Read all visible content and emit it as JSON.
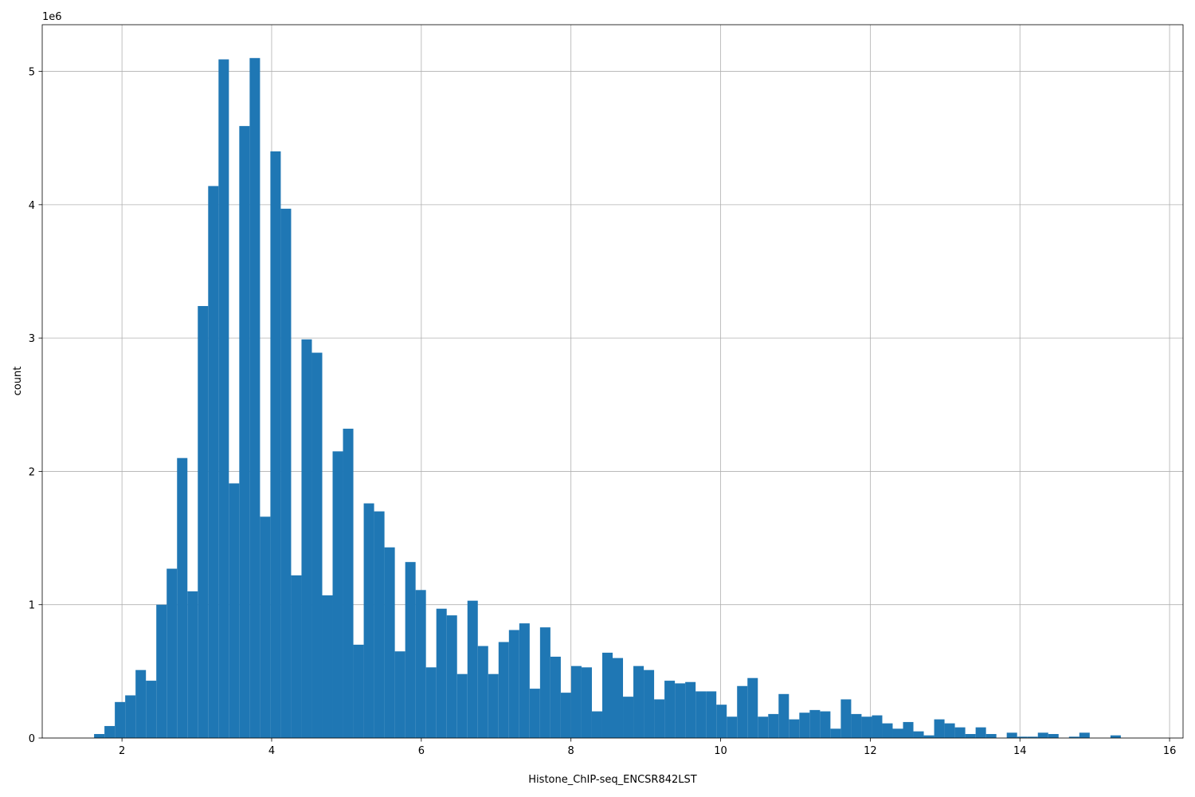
{
  "chart_data": {
    "type": "histogram",
    "xlabel": "Histone_ChIP-seq_ENCSR842LST",
    "ylabel": "count",
    "y_offset_label": "1e6",
    "color": "#1f77b4",
    "grid": true,
    "bins": [
      1.627,
      1.7656,
      1.9042,
      2.0428,
      2.1814,
      2.32,
      2.4586,
      2.5972,
      2.7358,
      2.8744,
      3.013,
      3.1516,
      3.2902,
      3.4288,
      3.5674,
      3.706,
      3.8446,
      3.9832,
      4.1218,
      4.2604,
      4.399,
      4.5376,
      4.6762,
      4.8148,
      4.9534,
      5.092,
      5.2306,
      5.3692,
      5.5078,
      5.6464,
      5.785,
      5.9236,
      6.0622,
      6.2008,
      6.3394,
      6.478,
      6.6166,
      6.7552,
      6.8938,
      7.0324,
      7.171,
      7.3096,
      7.4482,
      7.5868,
      7.7254,
      7.864,
      8.0026,
      8.1412,
      8.2798,
      8.4184,
      8.557,
      8.6956,
      8.8342,
      8.9728,
      9.1114,
      9.25,
      9.3886,
      9.5272,
      9.6658,
      9.8044,
      9.943,
      10.0816,
      10.2202,
      10.3588,
      10.4974,
      10.636,
      10.7746,
      10.9132,
      11.0518,
      11.1904,
      11.329,
      11.4676,
      11.6062,
      11.7448,
      11.8834,
      12.022,
      12.1606,
      12.2992,
      12.4378,
      12.5764,
      12.715,
      12.8536,
      12.9922,
      13.1308,
      13.2694,
      13.408,
      13.5466,
      13.6852,
      13.8238,
      13.9624,
      14.101,
      14.2396,
      14.3782,
      14.5168,
      14.6554,
      14.794,
      14.9326,
      15.0712,
      15.2098,
      15.3484,
      15.487
    ],
    "values": [
      30000,
      90000,
      270000,
      320000,
      510000,
      430000,
      1000000,
      1270000,
      2100000,
      1100000,
      3240000,
      4140000,
      5090000,
      1910000,
      4590000,
      5100000,
      1660000,
      4400000,
      3970000,
      1220000,
      2990000,
      2890000,
      1070000,
      2150000,
      2320000,
      700000,
      1760000,
      1700000,
      1430000,
      650000,
      1320000,
      1110000,
      530000,
      970000,
      920000,
      480000,
      1030000,
      690000,
      480000,
      720000,
      810000,
      860000,
      370000,
      830000,
      610000,
      340000,
      540000,
      530000,
      200000,
      640000,
      600000,
      310000,
      540000,
      510000,
      290000,
      430000,
      410000,
      420000,
      350000,
      350000,
      250000,
      160000,
      390000,
      450000,
      160000,
      180000,
      330000,
      140000,
      190000,
      210000,
      200000,
      70000,
      290000,
      180000,
      160000,
      170000,
      110000,
      70000,
      120000,
      50000,
      20000,
      140000,
      110000,
      80000,
      30000,
      80000,
      30000,
      0,
      40000,
      10000,
      10000,
      40000,
      30000,
      0,
      10000,
      40000,
      0,
      0,
      20000,
      0
    ],
    "xlim": [
      0.934,
      16.18
    ],
    "ylim": [
      0,
      5350000
    ],
    "xticks": [
      2,
      4,
      6,
      8,
      10,
      12,
      14,
      16
    ],
    "yticks": [
      0,
      {
        "value": 1000000,
        "label": "1"
      },
      {
        "value": 2000000,
        "label": "2"
      },
      {
        "value": 3000000,
        "label": "3"
      },
      {
        "value": 4000000,
        "label": "4"
      },
      {
        "value": 5000000,
        "label": "5"
      }
    ]
  }
}
